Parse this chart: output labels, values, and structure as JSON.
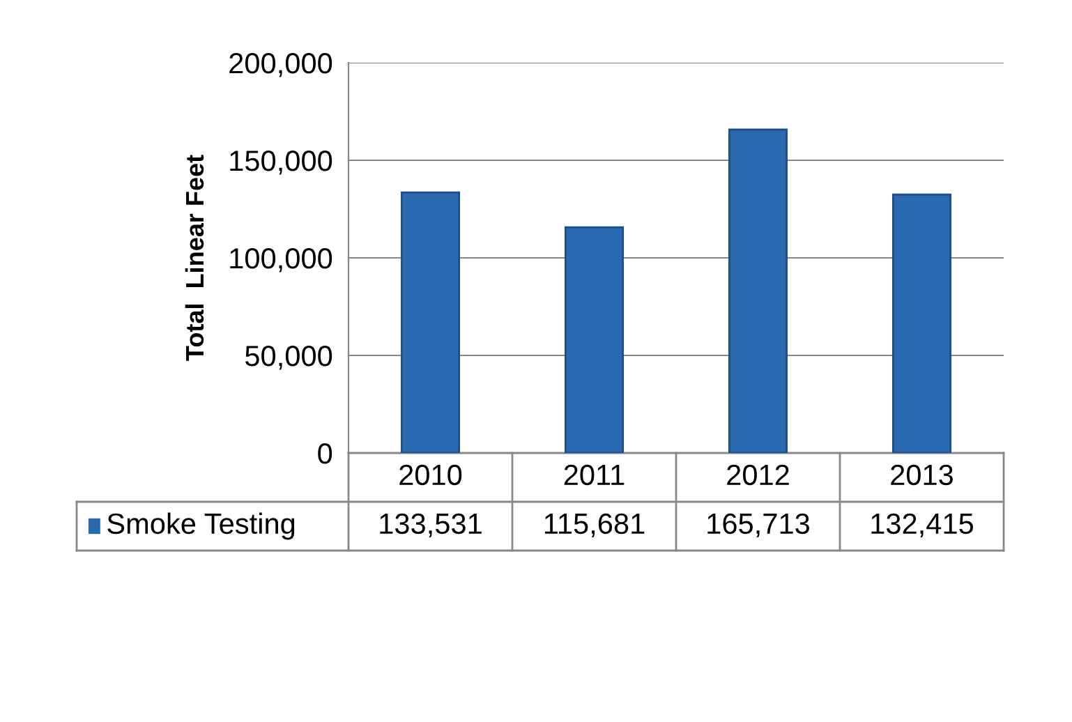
{
  "chart_data": {
    "type": "bar",
    "ylabel": "Total  Linear Feet",
    "categories": [
      "2010",
      "2011",
      "2012",
      "2013"
    ],
    "series": [
      {
        "name": "Smoke Testing",
        "color": "#2a6ab0",
        "values": [
          133531,
          115681,
          165713,
          132415
        ],
        "value_labels": [
          "133,531",
          "115,681",
          "165,713",
          "132,415"
        ]
      }
    ],
    "ylim": [
      0,
      200000
    ],
    "yticks": [
      0,
      {
        "value": 50000,
        "label": "50,000"
      },
      {
        "value": 100000,
        "label": "100,000"
      },
      {
        "value": 150000,
        "label": "150,000"
      },
      {
        "value": 200000,
        "label": "200,000"
      }
    ],
    "grid": "y",
    "legend": "bottom"
  }
}
